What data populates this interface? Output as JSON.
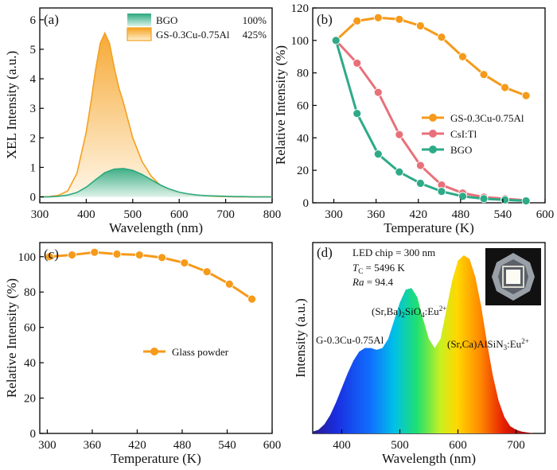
{
  "chart_data": [
    {
      "panel": "(a)",
      "type": "area",
      "xlabel": "Wavelength (nm)",
      "ylabel": "XEL Intensity (a.u.)",
      "xlim": [
        300,
        800
      ],
      "ylim": [
        -0.2,
        6.4
      ],
      "xticks": [
        300,
        400,
        500,
        600,
        700,
        800
      ],
      "yticks": [
        0,
        1,
        2,
        3,
        4,
        5,
        6
      ],
      "legend_position": "top-right",
      "series": [
        {
          "name": "BGO",
          "legend_value": "100%",
          "color": "#2ca87f",
          "x": [
            300,
            320,
            340,
            360,
            380,
            400,
            420,
            440,
            460,
            480,
            500,
            520,
            540,
            560,
            580,
            600,
            620,
            640,
            660,
            680,
            700,
            720,
            740,
            760,
            780,
            800
          ],
          "y": [
            0.0,
            0.0,
            0.02,
            0.06,
            0.15,
            0.33,
            0.58,
            0.82,
            0.94,
            0.96,
            0.9,
            0.76,
            0.58,
            0.4,
            0.26,
            0.16,
            0.1,
            0.06,
            0.04,
            0.03,
            0.02,
            0.01,
            0.01,
            0.0,
            0.0,
            0.0
          ]
        },
        {
          "name": "GS-0.3Cu-0.75Al",
          "legend_value": "425%",
          "color": "#f5a020",
          "x": [
            300,
            320,
            340,
            360,
            380,
            400,
            410,
            420,
            430,
            440,
            450,
            460,
            470,
            480,
            490,
            500,
            520,
            540,
            560,
            580,
            600,
            620,
            640,
            660,
            680,
            700,
            720,
            740,
            760,
            780,
            800
          ],
          "y": [
            0.0,
            0.01,
            0.05,
            0.2,
            0.8,
            2.2,
            3.2,
            4.3,
            5.2,
            5.55,
            5.2,
            4.4,
            3.7,
            3.2,
            2.6,
            2.0,
            1.2,
            0.7,
            0.38,
            0.2,
            0.1,
            0.05,
            0.03,
            0.02,
            0.01,
            0.01,
            0.0,
            0.0,
            0.0,
            0.0,
            0.0
          ]
        }
      ]
    },
    {
      "panel": "(b)",
      "type": "line",
      "xlabel": "Temperature (K)",
      "ylabel": "Relative Intensity (%)",
      "xlim": [
        270,
        600
      ],
      "ylim": [
        0,
        120
      ],
      "xticks": [
        300,
        360,
        420,
        480,
        540,
        600
      ],
      "yticks": [
        0,
        20,
        40,
        60,
        80,
        100,
        120
      ],
      "legend_position": "right",
      "x": [
        303,
        333,
        363,
        393,
        423,
        453,
        483,
        513,
        543,
        573
      ],
      "series": [
        {
          "name": "GS-0.3Cu-0.75Al",
          "color": "#f59a1a",
          "values": [
            100,
            112,
            114,
            113,
            109,
            102,
            90,
            79,
            71,
            66
          ]
        },
        {
          "name": "CsI:Tl",
          "color": "#e8707a",
          "values": [
            100,
            86,
            68,
            42,
            23,
            11,
            6,
            3.5,
            2.5,
            1.5
          ]
        },
        {
          "name": "BGO",
          "color": "#2eaa88",
          "values": [
            100,
            55,
            30,
            19,
            12,
            7,
            4,
            2.5,
            1.8,
            1.2
          ]
        }
      ]
    },
    {
      "panel": "(c)",
      "type": "line",
      "xlabel": "Temperature (K)",
      "ylabel": "Relative Intensity (%)",
      "xlim": [
        290,
        600
      ],
      "ylim": [
        0,
        108
      ],
      "xticks": [
        300,
        360,
        420,
        480,
        540,
        600
      ],
      "yticks": [
        0,
        20,
        40,
        60,
        80,
        100
      ],
      "legend_position": "center",
      "x": [
        303,
        333,
        363,
        393,
        423,
        453,
        483,
        513,
        543,
        573
      ],
      "series": [
        {
          "name": "Glass powder",
          "color": "#f59a1a",
          "values": [
            100,
            101,
            102.5,
            101.5,
            101,
            99.5,
            96.5,
            91.5,
            84.5,
            76
          ]
        }
      ]
    },
    {
      "panel": "(d)",
      "type": "area",
      "xlabel": "Wavelength (nm)",
      "ylabel": "Intensity (a.u.)",
      "xlim": [
        350,
        750
      ],
      "ylim": [
        0,
        1.05
      ],
      "xticks": [
        400,
        500,
        600,
        700
      ],
      "annotations": [
        "LED chip = 300 nm",
        "T_C = 5496 K",
        "Ra = 94.4"
      ],
      "peak_labels": [
        "G-0.3Cu-0.75Al",
        "(Sr,Ba)2SiO4:Eu2+",
        "(Sr,Ca)AlSiN3:Eu2+"
      ],
      "x": [
        350,
        360,
        370,
        380,
        390,
        400,
        410,
        420,
        430,
        440,
        450,
        460,
        470,
        480,
        490,
        500,
        510,
        520,
        530,
        540,
        550,
        560,
        570,
        580,
        590,
        600,
        610,
        620,
        630,
        640,
        650,
        660,
        670,
        680,
        690,
        700,
        710,
        720,
        730,
        740,
        750
      ],
      "y": [
        0.01,
        0.02,
        0.05,
        0.1,
        0.17,
        0.25,
        0.33,
        0.4,
        0.45,
        0.47,
        0.47,
        0.46,
        0.47,
        0.52,
        0.62,
        0.72,
        0.79,
        0.8,
        0.75,
        0.63,
        0.52,
        0.47,
        0.52,
        0.68,
        0.84,
        0.95,
        0.98,
        0.96,
        0.86,
        0.7,
        0.5,
        0.32,
        0.18,
        0.09,
        0.04,
        0.02,
        0.01,
        0.005,
        0.0,
        0.0,
        0.0
      ]
    }
  ]
}
